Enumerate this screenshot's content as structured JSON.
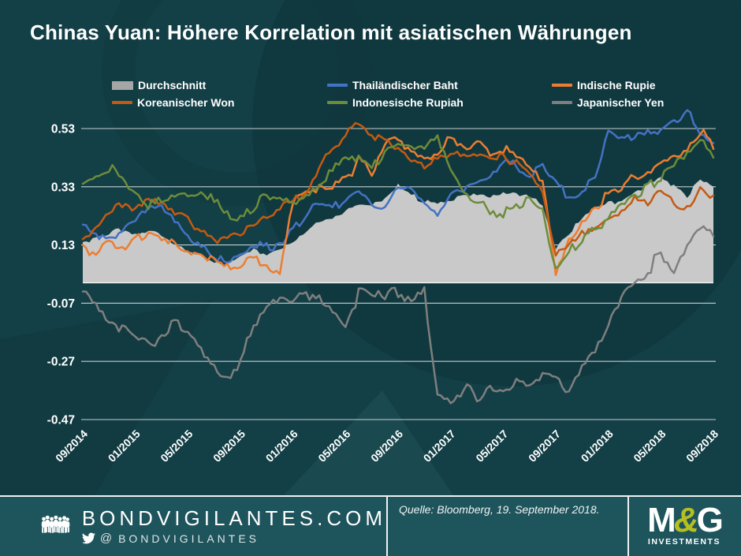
{
  "title": "Chinas Yuan: Höhere Korrelation mit asiatischen Währungen",
  "colors": {
    "background": "#133f46",
    "watermark": "#0d3237",
    "footer_background": "#1e545c",
    "grid_line": "#e3e9e9",
    "axis_text": "#ffffff",
    "mg_lime": "#b6be21"
  },
  "chart_data": {
    "type": "line",
    "title": "Chinas Yuan: Höhere Korrelation mit asiatischen Währungen",
    "xlabel": "",
    "ylabel": "",
    "x_tick_labels": [
      "09/2014",
      "01/2015",
      "05/2015",
      "09/2015",
      "01/2016",
      "05/2016",
      "09/2016",
      "01/2017",
      "05/2017",
      "09/2017",
      "01/2018",
      "05/2018",
      "09/2018"
    ],
    "y_ticks": [
      0.53,
      0.33,
      0.13,
      -0.07,
      -0.27,
      -0.47
    ],
    "ylim": [
      -0.55,
      0.62
    ],
    "grid": true,
    "zero_line": true,
    "legend_position": "top",
    "months_span": "09/2014 - 09/2018, monthly estimates",
    "series": [
      {
        "name": "Durchschnitt",
        "kind": "area",
        "color": "#c9c9c9",
        "legend_color": "#a6a6a6",
        "noise_amp": 0.008,
        "values": [
          0.14,
          0.16,
          0.17,
          0.18,
          0.17,
          0.18,
          0.17,
          0.14,
          0.11,
          0.09,
          0.07,
          0.07,
          0.09,
          0.11,
          0.1,
          0.12,
          0.14,
          0.17,
          0.21,
          0.23,
          0.25,
          0.27,
          0.26,
          0.29,
          0.33,
          0.3,
          0.28,
          0.27,
          0.29,
          0.3,
          0.31,
          0.3,
          0.31,
          0.31,
          0.3,
          0.26,
          0.12,
          0.17,
          0.22,
          0.25,
          0.27,
          0.29,
          0.31,
          0.33,
          0.37,
          0.33,
          0.3,
          0.35,
          0.33
        ]
      },
      {
        "name": "Thailändischer Baht",
        "kind": "line",
        "color": "#4472c4",
        "legend_color": "#4472c4",
        "noise_amp": 0.014,
        "values": [
          0.2,
          0.17,
          0.15,
          0.18,
          0.22,
          0.25,
          0.26,
          0.21,
          0.17,
          0.13,
          0.09,
          0.06,
          0.09,
          0.13,
          0.12,
          0.14,
          0.19,
          0.23,
          0.27,
          0.25,
          0.29,
          0.32,
          0.28,
          0.26,
          0.34,
          0.32,
          0.26,
          0.24,
          0.31,
          0.33,
          0.35,
          0.36,
          0.42,
          0.4,
          0.37,
          0.4,
          0.34,
          0.29,
          0.31,
          0.38,
          0.52,
          0.51,
          0.5,
          0.53,
          0.52,
          0.56,
          0.58,
          0.52,
          0.48
        ]
      },
      {
        "name": "Indische Rupie",
        "kind": "line",
        "color": "#ed7d31",
        "legend_color": "#ed7d31",
        "noise_amp": 0.016,
        "values": [
          0.13,
          0.1,
          0.14,
          0.12,
          0.15,
          0.18,
          0.16,
          0.14,
          0.12,
          0.1,
          0.08,
          0.07,
          0.05,
          0.08,
          0.06,
          0.04,
          0.28,
          0.31,
          0.33,
          0.32,
          0.36,
          0.42,
          0.38,
          0.48,
          0.5,
          0.45,
          0.42,
          0.44,
          0.5,
          0.46,
          0.48,
          0.44,
          0.46,
          0.43,
          0.4,
          0.35,
          0.04,
          0.14,
          0.22,
          0.27,
          0.3,
          0.33,
          0.36,
          0.38,
          0.41,
          0.43,
          0.45,
          0.52,
          0.46
        ]
      },
      {
        "name": "Koreanischer Won",
        "kind": "line",
        "color": "#c55a11",
        "legend_color": "#c55a11",
        "noise_amp": 0.015,
        "values": [
          0.15,
          0.18,
          0.23,
          0.28,
          0.26,
          0.3,
          0.27,
          0.24,
          0.21,
          0.19,
          0.16,
          0.14,
          0.16,
          0.21,
          0.24,
          0.26,
          0.28,
          0.31,
          0.39,
          0.46,
          0.51,
          0.55,
          0.52,
          0.48,
          0.45,
          0.42,
          0.39,
          0.42,
          0.45,
          0.43,
          0.44,
          0.42,
          0.44,
          0.41,
          0.37,
          0.3,
          0.09,
          0.13,
          0.17,
          0.19,
          0.21,
          0.25,
          0.3,
          0.27,
          0.32,
          0.28,
          0.26,
          0.33,
          0.3
        ]
      },
      {
        "name": "Indonesische Rupiah",
        "kind": "line",
        "color": "#6d8c3a",
        "legend_color": "#6d8c3a",
        "noise_amp": 0.015,
        "values": [
          0.34,
          0.38,
          0.4,
          0.35,
          0.3,
          0.26,
          0.28,
          0.31,
          0.29,
          0.32,
          0.28,
          0.24,
          0.22,
          0.26,
          0.3,
          0.28,
          0.28,
          0.3,
          0.33,
          0.38,
          0.44,
          0.43,
          0.39,
          0.46,
          0.47,
          0.46,
          0.48,
          0.5,
          0.38,
          0.3,
          0.27,
          0.25,
          0.24,
          0.27,
          0.29,
          0.26,
          0.03,
          0.1,
          0.15,
          0.18,
          0.21,
          0.26,
          0.3,
          0.33,
          0.36,
          0.4,
          0.46,
          0.5,
          0.43
        ]
      },
      {
        "name": "Japanischer Yen",
        "kind": "line",
        "color": "#7f7f7f",
        "legend_color": "#7f7f7f",
        "noise_amp": 0.018,
        "values": [
          -0.03,
          -0.08,
          -0.13,
          -0.16,
          -0.19,
          -0.21,
          -0.18,
          -0.13,
          -0.17,
          -0.23,
          -0.29,
          -0.32,
          -0.27,
          -0.14,
          -0.08,
          -0.06,
          -0.05,
          -0.04,
          -0.05,
          -0.09,
          -0.14,
          -0.04,
          -0.02,
          -0.05,
          -0.03,
          -0.06,
          -0.04,
          -0.38,
          -0.4,
          -0.36,
          -0.39,
          -0.36,
          -0.38,
          -0.34,
          -0.35,
          -0.31,
          -0.33,
          -0.38,
          -0.3,
          -0.22,
          -0.13,
          -0.04,
          0.0,
          0.05,
          0.09,
          0.03,
          0.13,
          0.2,
          0.16
        ]
      }
    ]
  },
  "footer": {
    "site": "BONDVIGILANTES.COM",
    "twitter_prefix": "@",
    "twitter_handle": "BONDVIGILANTES",
    "source": "Quelle: Bloomberg, 19. September 2018.",
    "logo": {
      "m": "M",
      "amp": "&",
      "g": "G",
      "sub": "INVESTMENTS"
    }
  }
}
